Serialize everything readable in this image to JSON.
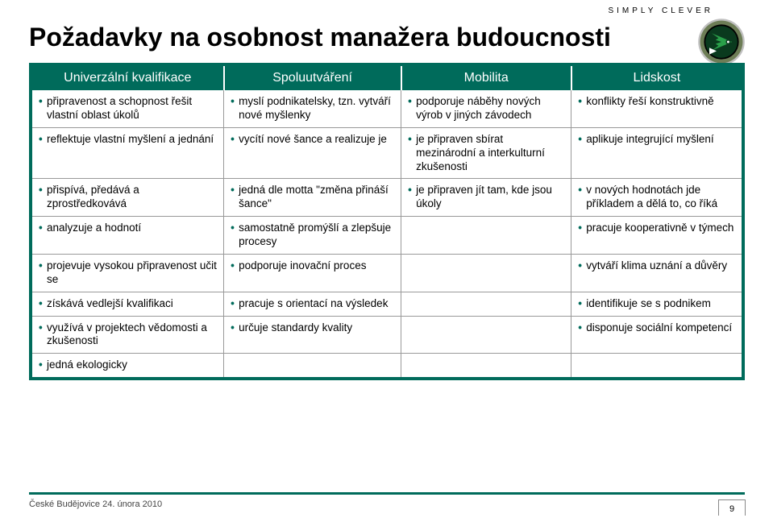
{
  "tagline": "SIMPLY  CLEVER",
  "title": "Požadavky na osobnost manažera budoucnosti",
  "logo": {
    "ring": "#6d7d56",
    "inner": "#0a3a1e",
    "arrow": "#2aa04a"
  },
  "accent": "#006b5b",
  "headers": [
    "Univerzální kvalifikace",
    "Spoluutváření",
    "Mobilita",
    "Lidskost"
  ],
  "col_widths_pct": [
    27,
    25,
    24,
    24
  ],
  "rows": [
    [
      "připravenost a schopnost řešit vlastní oblast úkolů",
      "myslí podnikatelsky, tzn. vytváří nové myšlenky",
      "podporuje náběhy nových výrob v jiných závodech",
      "konflikty řeší konstruktivně"
    ],
    [
      "reflektuje vlastní myšlení a jednání",
      "vycítí nové šance a realizuje je",
      "je připraven sbírat mezinárodní a interkulturní zkušenosti",
      "aplikuje integrující myšlení"
    ],
    [
      "přispívá, předává a zprostředkovává",
      "jedná dle motta \"změna přináší šance\"",
      "je připraven jít tam, kde jsou úkoly",
      "v nových hodnotách jde příkladem a dělá to, co říká"
    ],
    [
      "analyzuje a hodnotí",
      "samostatně promýšlí a zlepšuje procesy",
      "",
      "pracuje kooperativně v týmech"
    ],
    [
      "projevuje vysokou připravenost učit se",
      "podporuje inovační proces",
      "",
      "vytváří klima uznání a důvěry"
    ],
    [
      "získává vedlejší kvalifikaci",
      "pracuje s orientací na výsledek",
      "",
      "identifikuje se s podnikem"
    ],
    [
      "využívá v projektech vědomosti a zkušenosti",
      "určuje standardy kvality",
      "",
      "disponuje sociální kompetencí"
    ],
    [
      "jedná ekologicky",
      "",
      "",
      ""
    ]
  ],
  "footer": "České Budějovice  24. února  2010",
  "page": "9"
}
